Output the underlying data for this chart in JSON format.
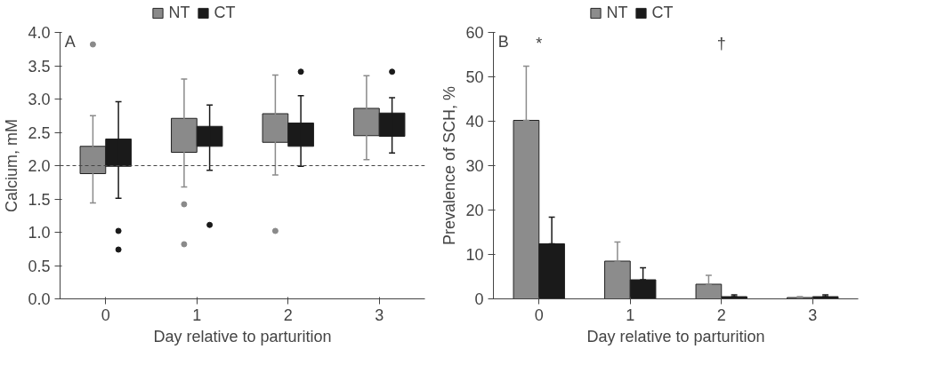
{
  "chart_data": [
    {
      "type": "bar",
      "categories": [
        "0",
        "1",
        "2",
        "3"
      ],
      "xlabel": "Day relative to parturition",
      "ylabel": "Calcium, mM",
      "annotations": [
        "A"
      ],
      "ylim": [
        0,
        4
      ],
      "yticks": [
        {
          "value": 0,
          "label": "0.0"
        },
        {
          "value": 0.5,
          "label": "0.5"
        },
        {
          "value": 1,
          "label": "1.0"
        },
        {
          "value": 1.5,
          "label": "1.5"
        },
        {
          "value": 2,
          "label": "2.0"
        },
        {
          "value": 2.5,
          "label": "2.5"
        },
        {
          "value": 3,
          "label": "3.0"
        },
        {
          "value": 3.5,
          "label": "3.5"
        },
        {
          "value": 4,
          "label": "4.0"
        }
      ],
      "grid": false,
      "legend": "top",
      "ref_lines": [
        {
          "axis": "y",
          "value": 2.0,
          "color": "#444444",
          "line_style": "dashed"
        }
      ],
      "series": [
        {
          "name": "NT",
          "color": "#8a8a8a",
          "base": [
            1.88,
            2.2,
            2.35,
            2.45
          ],
          "values": [
            0.41,
            0.51,
            0.43,
            0.41
          ],
          "errors": [
            [
              1.44,
              2.75
            ],
            [
              1.68,
              3.3
            ],
            [
              1.86,
              3.36
            ],
            [
              2.09,
              3.35
            ]
          ]
        },
        {
          "name": "CT",
          "color": "#1a1a1a",
          "base": [
            1.99,
            2.29,
            2.29,
            2.44
          ],
          "values": [
            0.41,
            0.3,
            0.35,
            0.35
          ],
          "errors": [
            [
              1.51,
              2.96
            ],
            [
              1.93,
              2.91
            ],
            [
              1.99,
              3.05
            ],
            [
              2.19,
              3.02
            ]
          ]
        },
        {
          "type": "scatter",
          "color": "#8a8a8a",
          "x": [
            "0",
            "1",
            "1",
            "2"
          ],
          "values": [
            3.82,
            1.42,
            0.82,
            1.02
          ]
        },
        {
          "type": "scatter",
          "color": "#1a1a1a",
          "x": [
            "0",
            "0",
            "1",
            "2",
            "3"
          ],
          "values": [
            1.02,
            0.74,
            1.11,
            3.41,
            3.41
          ]
        }
      ]
    },
    {
      "type": "bar",
      "categories": [
        "0",
        "1",
        "2",
        "3"
      ],
      "xlabel": "Day relative to parturition",
      "ylabel": "Prevalence of SCH, %",
      "annotations": [
        "B",
        "*",
        "†"
      ],
      "ylim": [
        0,
        60
      ],
      "yticks": [
        0,
        10,
        20,
        30,
        40,
        50,
        60
      ],
      "grid": false,
      "legend": "top",
      "series": [
        {
          "name": "NT",
          "color": "#8c8c8c",
          "values": [
            40.2,
            8.5,
            3.3,
            0.3
          ],
          "errors": [
            [
              40.2,
              52.4
            ],
            [
              8.5,
              12.8
            ],
            [
              3.3,
              5.3
            ],
            [
              0.3,
              0.5
            ]
          ]
        },
        {
          "name": "CT",
          "color": "#1a1a1a",
          "values": [
            12.4,
            4.3,
            0.5,
            0.5
          ],
          "errors": [
            [
              12.4,
              18.4
            ],
            [
              4.3,
              7.0
            ],
            [
              0.5,
              0.9
            ],
            [
              0.5,
              0.9
            ]
          ]
        }
      ]
    }
  ]
}
